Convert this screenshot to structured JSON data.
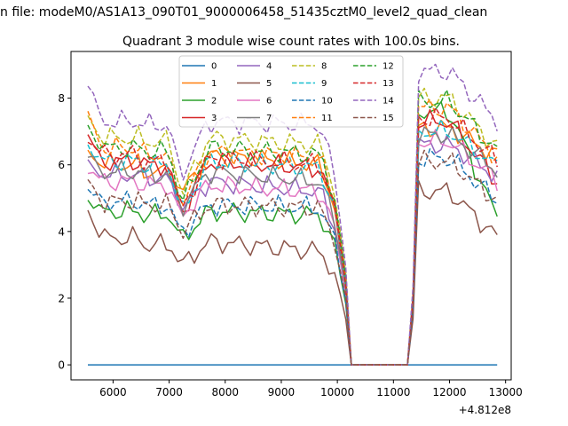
{
  "chart_data": {
    "type": "line",
    "suptitle": "n file: modeM0/AS1A13_090T01_9000006458_51435cztM0_level2_quad_clean",
    "title": "Quadrant 3 module wise count rates with 100.0s bins.",
    "xlabel": "",
    "ylabel": "",
    "x_offset_label": "+4.812e8",
    "xlim": [
      5250,
      13100
    ],
    "ylim": [
      -0.45,
      9.4
    ],
    "x_ticks": [
      6000,
      7000,
      8000,
      9000,
      10000,
      11000,
      12000,
      13000
    ],
    "x_tick_labels": [
      "6000",
      "7000",
      "8000",
      "9000",
      "10000",
      "11000",
      "12000",
      "13000"
    ],
    "y_ticks": [
      0,
      2,
      4,
      6,
      8
    ],
    "y_tick_labels": [
      "0",
      "2",
      "4",
      "6",
      "8"
    ],
    "x_grid": {
      "start": 5550,
      "step": 100,
      "count": 74
    },
    "legend_location": "upper center",
    "series": [
      {
        "name": "0",
        "color": "#1f77b4",
        "dashed": false,
        "profile": [
          0,
          0,
          0,
          0,
          0,
          0,
          0,
          0
        ]
      },
      {
        "name": "1",
        "color": "#ff7f0e",
        "dashed": false,
        "profile": [
          6.4,
          6.0,
          5.8,
          5.2,
          6.3,
          6.0,
          7.1,
          6.3
        ]
      },
      {
        "name": "2",
        "color": "#2ca02c",
        "dashed": false,
        "profile": [
          5.0,
          4.6,
          4.5,
          3.8,
          4.6,
          4.5,
          7.6,
          4.6
        ]
      },
      {
        "name": "3",
        "color": "#d62728",
        "dashed": false,
        "profile": [
          6.9,
          6.1,
          6.0,
          4.6,
          6.1,
          5.9,
          7.3,
          5.6
        ]
      },
      {
        "name": "4",
        "color": "#9467bd",
        "dashed": false,
        "profile": [
          6.0,
          5.7,
          5.6,
          4.7,
          5.5,
          5.2,
          6.6,
          5.7
        ]
      },
      {
        "name": "5",
        "color": "#8c564b",
        "dashed": false,
        "profile": [
          4.6,
          3.8,
          3.6,
          3.0,
          3.7,
          3.4,
          5.2,
          3.9
        ]
      },
      {
        "name": "6",
        "color": "#e377c2",
        "dashed": false,
        "profile": [
          5.9,
          5.5,
          5.4,
          4.5,
          5.4,
          5.2,
          6.7,
          5.6
        ]
      },
      {
        "name": "7",
        "color": "#7f7f7f",
        "dashed": false,
        "profile": [
          6.3,
          5.8,
          5.7,
          4.8,
          5.8,
          5.5,
          6.9,
          5.9
        ]
      },
      {
        "name": "8",
        "color": "#bcbd22",
        "dashed": true,
        "profile": [
          7.4,
          6.8,
          6.7,
          5.2,
          6.8,
          6.6,
          8.0,
          6.6
        ]
      },
      {
        "name": "9",
        "color": "#17becf",
        "dashed": true,
        "profile": [
          6.6,
          6.1,
          6.0,
          4.6,
          6.1,
          5.9,
          7.0,
          6.0
        ]
      },
      {
        "name": "10",
        "color": "#1f77b4",
        "dashed": true,
        "profile": [
          5.3,
          4.9,
          4.8,
          4.0,
          4.8,
          4.7,
          6.2,
          5.0
        ]
      },
      {
        "name": "11",
        "color": "#ff7f0e",
        "dashed": true,
        "profile": [
          7.5,
          6.5,
          6.3,
          4.9,
          6.4,
          6.2,
          7.7,
          6.3
        ]
      },
      {
        "name": "12",
        "color": "#2ca02c",
        "dashed": true,
        "profile": [
          7.1,
          6.5,
          6.4,
          4.9,
          6.5,
          6.3,
          7.9,
          6.5
        ]
      },
      {
        "name": "13",
        "color": "#d62728",
        "dashed": true,
        "profile": [
          6.8,
          6.3,
          6.1,
          4.7,
          6.2,
          6.0,
          7.4,
          6.2
        ]
      },
      {
        "name": "14",
        "color": "#9467bd",
        "dashed": true,
        "profile": [
          8.5,
          7.3,
          7.2,
          5.8,
          7.3,
          7.2,
          8.8,
          7.4
        ]
      },
      {
        "name": "15",
        "color": "#8c564b",
        "dashed": true,
        "profile": [
          5.5,
          4.9,
          4.8,
          4.0,
          4.8,
          4.7,
          6.1,
          5.0
        ]
      }
    ]
  }
}
